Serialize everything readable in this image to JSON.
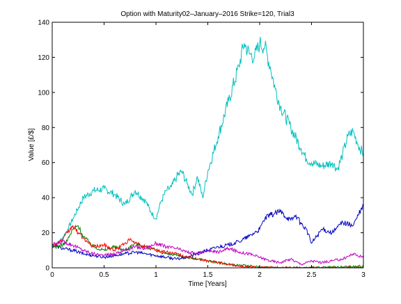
{
  "chart_data": {
    "type": "line",
    "title": "Option with Maturity02–January–2016 Strike=120, Trial3",
    "xlabel": "Time [Years]",
    "ylabel": "Value [£/$]",
    "xlim": [
      0,
      3
    ],
    "ylim": [
      0,
      140
    ],
    "xticks": [
      "0",
      "0.5",
      "1",
      "1.5",
      "2",
      "2.5",
      "3"
    ],
    "yticks": [
      "0",
      "20",
      "40",
      "60",
      "80",
      "100",
      "120",
      "140"
    ],
    "grid": false,
    "legend": "none",
    "series": [
      {
        "color": "#00BFBF",
        "x": [
          0,
          0.05,
          0.1,
          0.15,
          0.2,
          0.3,
          0.4,
          0.5,
          0.6,
          0.7,
          0.8,
          0.9,
          0.95,
          1.0,
          1.05,
          1.1,
          1.15,
          1.2,
          1.25,
          1.3,
          1.35,
          1.4,
          1.45,
          1.5,
          1.6,
          1.7,
          1.8,
          1.85,
          1.9,
          1.95,
          2.0,
          2.05,
          2.1,
          2.15,
          2.2,
          2.3,
          2.4,
          2.45,
          2.5,
          2.6,
          2.7,
          2.75,
          2.8,
          2.85,
          2.9,
          2.95,
          3.0
        ],
        "y": [
          12,
          14,
          17,
          22,
          28,
          40,
          44,
          45,
          42,
          36,
          44,
          38,
          32,
          28,
          38,
          44,
          46,
          52,
          55,
          48,
          42,
          52,
          40,
          55,
          75,
          95,
          115,
          128,
          122,
          120,
          128,
          126,
          115,
          102,
          92,
          80,
          68,
          62,
          60,
          58,
          60,
          56,
          65,
          75,
          78,
          70,
          65
        ]
      },
      {
        "color": "#0000BF",
        "x": [
          0,
          0.1,
          0.2,
          0.3,
          0.4,
          0.5,
          0.6,
          0.7,
          0.8,
          0.9,
          1.0,
          1.1,
          1.2,
          1.3,
          1.4,
          1.5,
          1.6,
          1.7,
          1.8,
          1.9,
          2.0,
          2.05,
          2.1,
          2.2,
          2.3,
          2.35,
          2.4,
          2.45,
          2.5,
          2.6,
          2.7,
          2.8,
          2.9,
          2.95,
          3.0
        ],
        "y": [
          13,
          11,
          10,
          8,
          7,
          6,
          7,
          8,
          9,
          8,
          7,
          6,
          5,
          6,
          8,
          10,
          12,
          13,
          15,
          18,
          22,
          28,
          30,
          32,
          27,
          30,
          25,
          22,
          14,
          22,
          20,
          26,
          24,
          30,
          35
        ]
      },
      {
        "color": "#008000",
        "x": [
          0,
          0.05,
          0.1,
          0.15,
          0.2,
          0.25,
          0.3,
          0.35,
          0.4,
          0.5,
          0.6,
          0.7,
          0.8,
          0.9,
          1.0,
          1.1,
          1.2,
          1.3,
          1.4,
          1.5,
          1.6,
          1.7,
          1.8,
          1.9,
          2.0,
          2.2,
          2.4,
          2.6,
          2.8,
          3.0
        ],
        "y": [
          12,
          12,
          13,
          16,
          22,
          24,
          18,
          15,
          12,
          10,
          12,
          10,
          14,
          12,
          10,
          8,
          7,
          6,
          5,
          4,
          3,
          2,
          1.5,
          1,
          0.5,
          0.2,
          0.1,
          0.2,
          0.5,
          1
        ]
      },
      {
        "color": "#FF0000",
        "x": [
          0,
          0.05,
          0.1,
          0.15,
          0.2,
          0.25,
          0.3,
          0.35,
          0.4,
          0.5,
          0.6,
          0.7,
          0.75,
          0.8,
          0.9,
          1.0,
          1.1,
          1.2,
          1.3,
          1.4,
          1.5,
          1.6,
          1.7,
          1.8,
          1.9,
          2.0,
          2.2,
          2.4,
          2.6,
          2.8,
          3.0
        ],
        "y": [
          12,
          14,
          16,
          20,
          24,
          20,
          17,
          14,
          12,
          13,
          10,
          14,
          16,
          14,
          12,
          10,
          9,
          8,
          6,
          5,
          4,
          3,
          2,
          1,
          0.5,
          0.2,
          0,
          0,
          0,
          0,
          0
        ]
      },
      {
        "color": "#BF00BF",
        "x": [
          0,
          0.1,
          0.2,
          0.3,
          0.4,
          0.5,
          0.6,
          0.7,
          0.8,
          0.9,
          1.0,
          1.1,
          1.2,
          1.3,
          1.4,
          1.5,
          1.6,
          1.7,
          1.8,
          1.9,
          2.0,
          2.1,
          2.2,
          2.3,
          2.4,
          2.5,
          2.6,
          2.7,
          2.8,
          2.9,
          3.0
        ],
        "y": [
          13,
          15,
          13,
          10,
          8,
          7,
          8,
          10,
          12,
          11,
          14,
          12,
          11,
          9,
          8,
          10,
          9,
          11,
          9,
          8,
          6,
          4,
          3,
          5,
          2,
          4,
          3,
          4,
          5,
          8,
          6
        ]
      }
    ]
  }
}
